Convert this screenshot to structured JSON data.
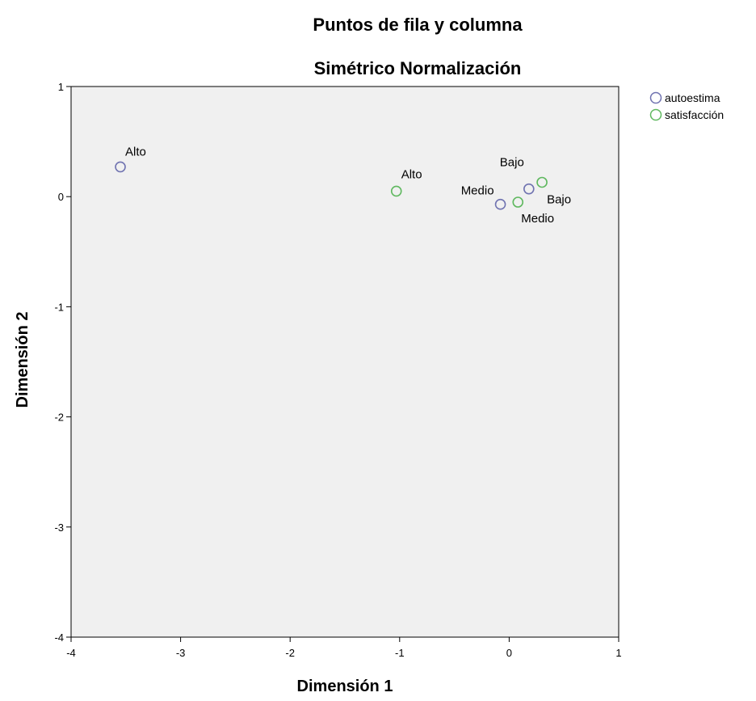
{
  "chart_data": {
    "type": "scatter",
    "title": "Puntos de fila y columna",
    "subtitle": "Simétrico Normalización",
    "xlabel": "Dimensión 1",
    "ylabel": "Dimensión 2",
    "xlim": [
      -4,
      1
    ],
    "ylim": [
      -4,
      1
    ],
    "xticks": [
      "-4",
      "-3",
      "-2",
      "-1",
      "0",
      "1"
    ],
    "yticks": [
      "1",
      "0",
      "-1",
      "-2",
      "-3",
      "-4"
    ],
    "grid": false,
    "legend_position": "top-right",
    "plot_background": "#f0f0f0",
    "series": [
      {
        "name": "autoestima",
        "color": "#6f72b0",
        "points": [
          {
            "label": "Alto",
            "x": -3.55,
            "y": 0.27
          },
          {
            "label": "Medio",
            "x": -0.08,
            "y": -0.07
          },
          {
            "label": "Bajo",
            "x": 0.18,
            "y": 0.07
          }
        ]
      },
      {
        "name": "satisfacción",
        "color": "#5fb85f",
        "points": [
          {
            "label": "Alto",
            "x": -1.03,
            "y": 0.05
          },
          {
            "label": "Medio",
            "x": 0.08,
            "y": -0.05
          },
          {
            "label": "Bajo",
            "x": 0.3,
            "y": 0.13
          }
        ]
      }
    ]
  }
}
